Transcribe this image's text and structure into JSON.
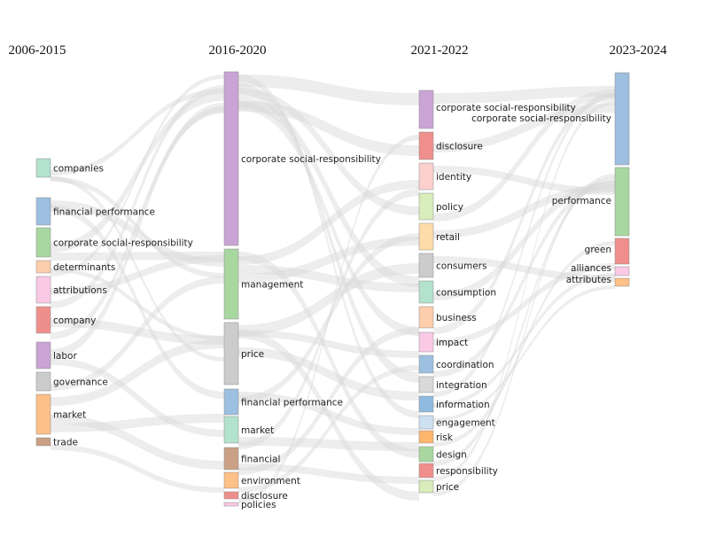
{
  "columns": [
    "2006-2015",
    "2016-2020",
    "2021-2022",
    "2023-2024"
  ],
  "nodes": [
    [
      {
        "label": "companies",
        "color": "#b3e2cd"
      },
      {
        "label": "financial performance",
        "color": "#9dbfe0"
      },
      {
        "label": "corporate social-responsibility",
        "color": "#a8d8a0"
      },
      {
        "label": "determinants",
        "color": "#fdcdac"
      },
      {
        "label": "attributions",
        "color": "#f9c9e6"
      },
      {
        "label": "company",
        "color": "#ef8f8c"
      },
      {
        "label": "labor",
        "color": "#c9a4d4"
      },
      {
        "label": "governance",
        "color": "#cccccc"
      },
      {
        "label": "market",
        "color": "#fdc086"
      },
      {
        "label": "trade",
        "color": "#caa185"
      }
    ],
    [
      {
        "label": "corporate social-responsibility",
        "color": "#c9a4d4"
      },
      {
        "label": "management",
        "color": "#a8d8a0"
      },
      {
        "label": "price",
        "color": "#cccccc"
      },
      {
        "label": "financial performance",
        "color": "#9dbfe0"
      },
      {
        "label": "market",
        "color": "#b3e2cd"
      },
      {
        "label": "financial",
        "color": "#caa185"
      },
      {
        "label": "environment",
        "color": "#fdc086"
      },
      {
        "label": "disclosure",
        "color": "#ef8f8c"
      },
      {
        "label": "policies",
        "color": "#f9c9e6"
      }
    ],
    [
      {
        "label": "corporate social-responsibility",
        "color": "#c9a4d4"
      },
      {
        "label": "disclosure",
        "color": "#ef8f8c"
      },
      {
        "label": "identity",
        "color": "#fccfcf"
      },
      {
        "label": "policy",
        "color": "#d8edbb"
      },
      {
        "label": "retail",
        "color": "#fddcaa"
      },
      {
        "label": "consumers",
        "color": "#cccccc"
      },
      {
        "label": "consumption",
        "color": "#b3e2cd"
      },
      {
        "label": "business",
        "color": "#fdcdac"
      },
      {
        "label": "impact",
        "color": "#f9c9e6"
      },
      {
        "label": "coordination",
        "color": "#9dbfe0"
      },
      {
        "label": "integration",
        "color": "#d9d9d9"
      },
      {
        "label": "information",
        "color": "#8fbbe0"
      },
      {
        "label": "engagement",
        "color": "#cde1f2"
      },
      {
        "label": "risk",
        "color": "#fdb66e"
      },
      {
        "label": "design",
        "color": "#a8d8a0"
      },
      {
        "label": "responsibility",
        "color": "#ef8f8c"
      },
      {
        "label": "price",
        "color": "#d8edbb"
      }
    ],
    [
      {
        "label": "corporate social-responsibility",
        "color": "#9dbfe0"
      },
      {
        "label": "performance",
        "color": "#a8d8a0"
      },
      {
        "label": "green",
        "color": "#ef8f8c"
      },
      {
        "label": "alliances",
        "color": "#f9c9e6"
      },
      {
        "label": "attributes",
        "color": "#fdc086"
      }
    ]
  ]
}
